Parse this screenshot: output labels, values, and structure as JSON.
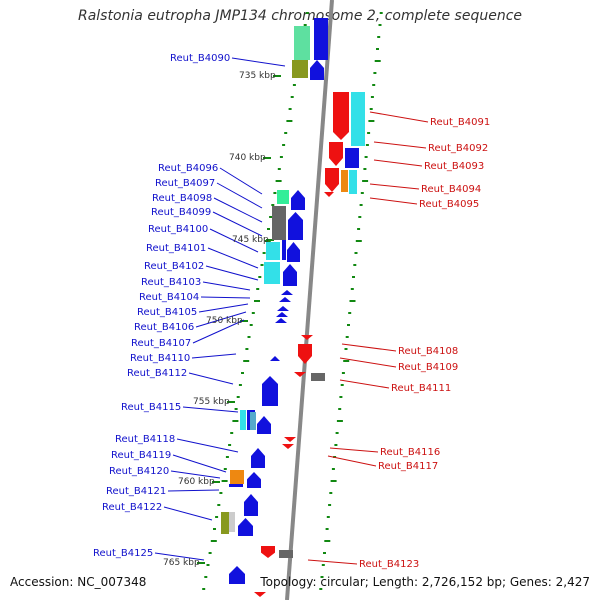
{
  "title": "Ralstonia eutropha JMP134 chromosome 2, complete sequence",
  "footer": {
    "accession": "Accession: NC_007348",
    "topology": "Topology: circular; Length: 2,726,152 bp; Genes: 2,427"
  },
  "colors": {
    "forward": "#1111dd",
    "reverse": "#ee1111",
    "cyan": "#33e0e8",
    "green": "#33ee99",
    "grey": "#666666",
    "olive": "#88991f",
    "orange": "#ee8811",
    "tick": "#118811",
    "line": "#888888"
  },
  "kbp_labels": [
    "735 kbp",
    "740 kbp",
    "745 kbp",
    "750 kbp",
    "755 kbp",
    "760 kbp",
    "765 kbp"
  ],
  "left_labels": [
    "Reut_B4090",
    "Reut_B4096",
    "Reut_B4097",
    "Reut_B4098",
    "Reut_B4099",
    "Reut_B4100",
    "Reut_B4101",
    "Reut_B4102",
    "Reut_B4103",
    "Reut_B4104",
    "Reut_B4105",
    "Reut_B4106",
    "Reut_B4107",
    "Reut_B4110",
    "Reut_B4112",
    "Reut_B4115",
    "Reut_B4118",
    "Reut_B4119",
    "Reut_B4120",
    "Reut_B4121",
    "Reut_B4122",
    "Reut_B4125"
  ],
  "right_labels": [
    "Reut_B4091",
    "Reut_B4092",
    "Reut_B4093",
    "Reut_B4094",
    "Reut_B4095",
    "Reut_B4108",
    "Reut_B4109",
    "Reut_B4111",
    "Reut_B4116",
    "Reut_B4117",
    "Reut_B4123"
  ]
}
